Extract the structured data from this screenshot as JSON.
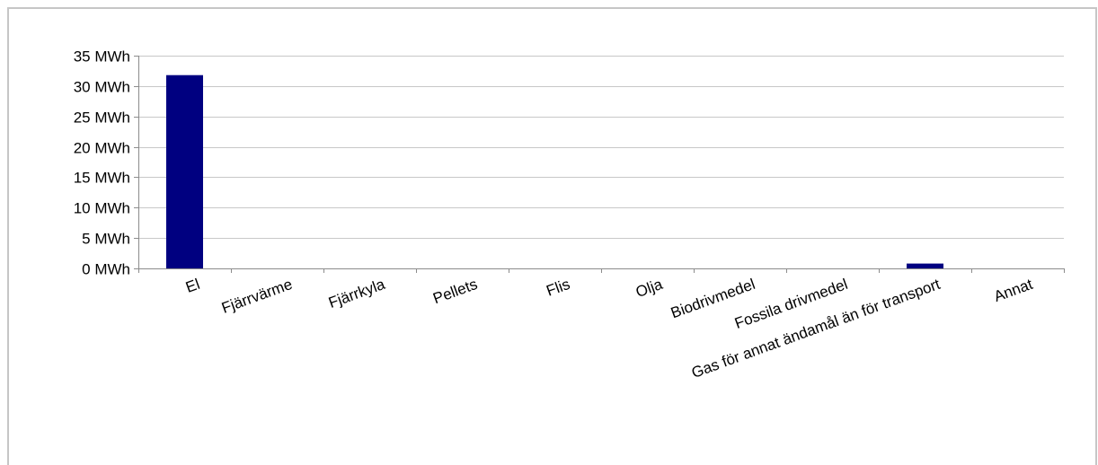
{
  "chart_data": {
    "type": "bar",
    "title": "",
    "xlabel": "",
    "ylabel": "",
    "categories": [
      "El",
      "Fjärrvärme",
      "Fjärrkyla",
      "Pellets",
      "Flis",
      "Olja",
      "Biodrivmedel",
      "Fossila drivmedel",
      "Gas för annat ändamål än för transport",
      "Annat"
    ],
    "values": [
      31.8,
      0,
      0,
      0,
      0,
      0,
      0,
      0,
      0.8,
      0
    ],
    "ylim": [
      0,
      35
    ],
    "y_ticks": [
      0,
      5,
      10,
      15,
      20,
      25,
      30,
      35
    ],
    "y_tick_labels": [
      "0 MWh",
      "5 MWh",
      "10 MWh",
      "15 MWh",
      "20 MWh",
      "25 MWh",
      "30 MWh",
      "35 MWh"
    ],
    "unit": "MWh",
    "grid": true,
    "legend": "none",
    "bar_color": "#000080",
    "grid_color": "#c8c8c8",
    "axis_color": "#8c8c8c"
  }
}
